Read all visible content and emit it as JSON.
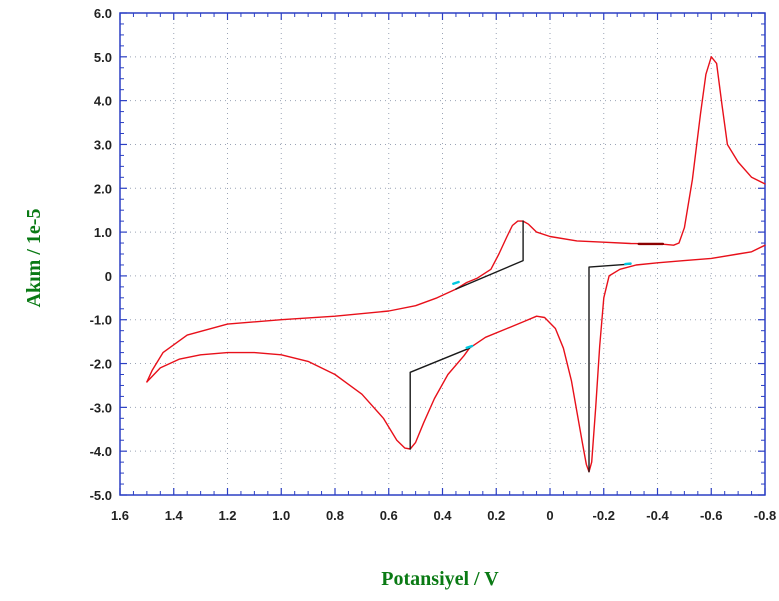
{
  "chart_data": {
    "type": "line",
    "title": "",
    "xlabel": "Potansiyel / V",
    "ylabel": "Akım / 1e-5",
    "xlim": [
      1.6,
      -0.8
    ],
    "ylim": [
      -5.0,
      6.0
    ],
    "x_reversed": true,
    "grid": true,
    "x_ticks": [
      1.6,
      1.4,
      1.2,
      1.0,
      0.8,
      0.6,
      0.4,
      0.2,
      0,
      -0.2,
      -0.4,
      -0.6,
      -0.8
    ],
    "x_tick_labels": [
      "1.6",
      "1.4",
      "1.2",
      "1.0",
      "0.8",
      "0.6",
      "0.4",
      "0.2",
      "0",
      "-0.2",
      "-0.4",
      "-0.6",
      "-0.8"
    ],
    "y_ticks": [
      6,
      5,
      4,
      3,
      2,
      1,
      0,
      -1,
      -2,
      -3,
      -4,
      -5
    ],
    "y_tick_labels": [
      "6.0",
      "5.0",
      "4.0",
      "3.0",
      "2.0",
      "1.0",
      "0",
      "-1.0",
      "-2.0",
      "-3.0",
      "-4.0",
      "-5.0"
    ],
    "series": [
      {
        "color": "#e8101a",
        "points": [
          [
            -0.8,
            2.1
          ],
          [
            -0.75,
            2.25
          ],
          [
            -0.7,
            2.6
          ],
          [
            -0.66,
            3.0
          ],
          [
            -0.64,
            3.9
          ],
          [
            -0.62,
            4.85
          ],
          [
            -0.6,
            5.0
          ],
          [
            -0.58,
            4.6
          ],
          [
            -0.56,
            3.7
          ],
          [
            -0.53,
            2.2
          ],
          [
            -0.5,
            1.1
          ],
          [
            -0.48,
            0.75
          ],
          [
            -0.46,
            0.7
          ],
          [
            -0.43,
            0.72
          ],
          [
            -0.4,
            0.73
          ],
          [
            -0.3,
            0.74
          ],
          [
            -0.2,
            0.77
          ],
          [
            -0.1,
            0.8
          ],
          [
            0.0,
            0.9
          ],
          [
            0.05,
            1.0
          ],
          [
            0.08,
            1.18
          ],
          [
            0.1,
            1.25
          ],
          [
            0.12,
            1.25
          ],
          [
            0.14,
            1.15
          ],
          [
            0.16,
            0.9
          ],
          [
            0.19,
            0.5
          ],
          [
            0.22,
            0.15
          ],
          [
            0.27,
            -0.05
          ],
          [
            0.31,
            -0.15
          ],
          [
            0.35,
            -0.3
          ]
        ]
      },
      {
        "color": "#e8101a",
        "points": [
          [
            0.35,
            -0.3
          ],
          [
            0.42,
            -0.5
          ],
          [
            0.5,
            -0.68
          ],
          [
            0.6,
            -0.8
          ],
          [
            0.8,
            -0.92
          ],
          [
            1.0,
            -1.0
          ],
          [
            1.2,
            -1.1
          ],
          [
            1.35,
            -1.35
          ],
          [
            1.44,
            -1.75
          ],
          [
            1.48,
            -2.15
          ],
          [
            1.5,
            -2.42
          ]
        ]
      },
      {
        "color": "#e8101a",
        "points": [
          [
            1.5,
            -2.42
          ],
          [
            1.45,
            -2.1
          ],
          [
            1.38,
            -1.9
          ],
          [
            1.3,
            -1.8
          ],
          [
            1.2,
            -1.75
          ],
          [
            1.1,
            -1.75
          ],
          [
            1.0,
            -1.8
          ],
          [
            0.9,
            -1.95
          ],
          [
            0.8,
            -2.25
          ],
          [
            0.7,
            -2.7
          ],
          [
            0.62,
            -3.25
          ],
          [
            0.57,
            -3.75
          ],
          [
            0.54,
            -3.93
          ],
          [
            0.52,
            -3.95
          ],
          [
            0.5,
            -3.8
          ],
          [
            0.47,
            -3.35
          ],
          [
            0.43,
            -2.8
          ],
          [
            0.38,
            -2.25
          ],
          [
            0.32,
            -1.82
          ],
          [
            0.3,
            -1.65
          ]
        ]
      },
      {
        "color": "#e8101a",
        "points": [
          [
            0.3,
            -1.65
          ],
          [
            0.24,
            -1.4
          ],
          [
            0.16,
            -1.2
          ],
          [
            0.1,
            -1.05
          ],
          [
            0.05,
            -0.92
          ],
          [
            0.02,
            -0.95
          ],
          [
            -0.02,
            -1.2
          ],
          [
            -0.05,
            -1.65
          ],
          [
            -0.08,
            -2.4
          ],
          [
            -0.1,
            -3.1
          ],
          [
            -0.12,
            -3.8
          ],
          [
            -0.135,
            -4.3
          ],
          [
            -0.145,
            -4.47
          ],
          [
            -0.155,
            -4.25
          ],
          [
            -0.17,
            -3.0
          ],
          [
            -0.185,
            -1.6
          ],
          [
            -0.2,
            -0.5
          ],
          [
            -0.22,
            0.0
          ],
          [
            -0.26,
            0.15
          ],
          [
            -0.32,
            0.25
          ],
          [
            -0.4,
            0.3
          ],
          [
            -0.5,
            0.35
          ],
          [
            -0.6,
            0.4
          ],
          [
            -0.7,
            0.5
          ],
          [
            -0.75,
            0.55
          ],
          [
            -0.8,
            0.7
          ]
        ]
      },
      {
        "color": "#1a1a1a",
        "points": [
          [
            0.35,
            -0.3
          ],
          [
            0.1,
            0.35
          ],
          [
            0.1,
            1.25
          ]
        ]
      },
      {
        "color": "#1a1a1a",
        "points": [
          [
            0.52,
            -3.95
          ],
          [
            0.52,
            -2.2
          ],
          [
            0.3,
            -1.65
          ]
        ]
      },
      {
        "color": "#1a1a1a",
        "points": [
          [
            -0.145,
            -4.47
          ],
          [
            -0.145,
            0.2
          ],
          [
            -0.3,
            0.27
          ]
        ]
      }
    ],
    "annotations": [
      {
        "color": "#8b0000",
        "points": [
          [
            -0.33,
            0.73
          ],
          [
            -0.42,
            0.73
          ]
        ]
      },
      {
        "color": "#00c8e0",
        "points": [
          [
            0.31,
            -1.64
          ],
          [
            0.29,
            -1.6
          ]
        ]
      },
      {
        "color": "#00c8e0",
        "points": [
          [
            0.36,
            -0.18
          ],
          [
            0.34,
            -0.14
          ]
        ]
      },
      {
        "color": "#00c8e0",
        "points": [
          [
            -0.28,
            0.27
          ],
          [
            -0.3,
            0.28
          ]
        ]
      }
    ]
  }
}
